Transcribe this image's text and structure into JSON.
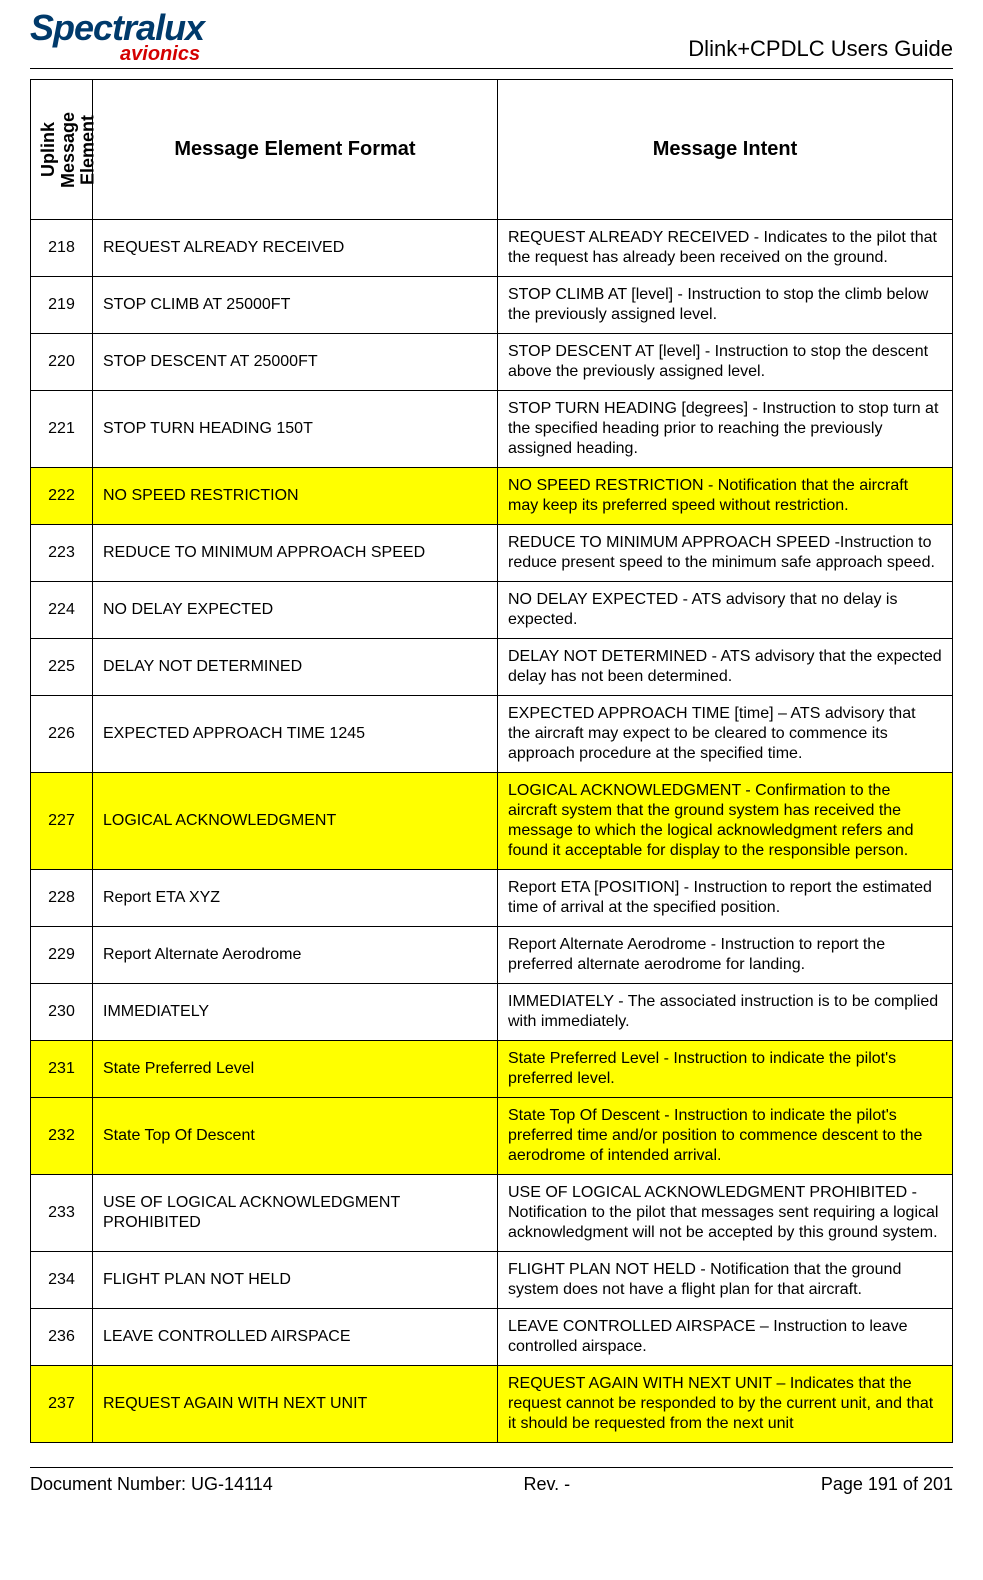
{
  "header": {
    "logo_main": "Spectralux",
    "logo_sub": "avionics",
    "doc_title": "Dlink+CPDLC Users Guide"
  },
  "table": {
    "headers": {
      "element": "Uplink Message Element",
      "format": "Message Element Format",
      "intent": "Message Intent"
    },
    "highlight_color": "#ffff00",
    "rows": [
      {
        "id": "218",
        "format": "REQUEST ALREADY RECEIVED",
        "intent": "REQUEST ALREADY RECEIVED - Indicates to the pilot that the request has already been received on the ground.",
        "highlight": false
      },
      {
        "id": "219",
        "format": "STOP CLIMB AT 25000FT",
        "intent": "STOP CLIMB AT [level] - Instruction to stop the climb below the previously assigned level.",
        "highlight": false
      },
      {
        "id": "220",
        "format": "STOP DESCENT AT 25000FT",
        "intent": "STOP DESCENT AT [level] - Instruction to stop the descent above the previously assigned level.",
        "highlight": false
      },
      {
        "id": "221",
        "format": "STOP TURN HEADING 150T",
        "intent": "STOP TURN HEADING [degrees] - Instruction to stop turn at the specified heading prior to reaching the previously assigned heading.",
        "highlight": false
      },
      {
        "id": "222",
        "format": "NO SPEED RESTRICTION",
        "intent": "NO SPEED RESTRICTION - Notification that the aircraft may keep its preferred speed without restriction.",
        "highlight": true
      },
      {
        "id": "223",
        "format": "REDUCE TO MINIMUM APPROACH SPEED",
        "intent": "REDUCE TO MINIMUM APPROACH SPEED -Instruction to reduce present speed to the minimum safe approach speed.",
        "highlight": false
      },
      {
        "id": "224",
        "format": "NO DELAY EXPECTED",
        "intent": "NO DELAY EXPECTED - ATS advisory that no delay is expected.",
        "highlight": false
      },
      {
        "id": "225",
        "format": "DELAY NOT DETERMINED",
        "intent": "DELAY NOT DETERMINED - ATS advisory that the expected delay has not been determined.",
        "highlight": false
      },
      {
        "id": "226",
        "format": "EXPECTED APPROACH TIME 1245",
        "intent": "EXPECTED APPROACH TIME [time] – ATS advisory that the aircraft may expect to be cleared to commence its approach procedure at the specified time.",
        "highlight": false
      },
      {
        "id": "227",
        "format": "LOGICAL ACKNOWLEDGMENT",
        "intent": "LOGICAL ACKNOWLEDGMENT - Confirmation to the aircraft system that the ground system has received the message to which the logical acknowledgment refers and found it acceptable for display to the responsible person.",
        "highlight": true
      },
      {
        "id": "228",
        "format": "Report ETA XYZ",
        "intent": "Report ETA [POSITION] - Instruction to report the estimated time of arrival at the specified position.",
        "highlight": false
      },
      {
        "id": "229",
        "format": "Report Alternate Aerodrome",
        "intent": "Report Alternate Aerodrome - Instruction to report the preferred alternate aerodrome for landing.",
        "highlight": false
      },
      {
        "id": "230",
        "format": "IMMEDIATELY",
        "intent": "IMMEDIATELY - The associated instruction is to be complied with immediately.",
        "highlight": false
      },
      {
        "id": "231",
        "format": "State Preferred Level",
        "intent": "State Preferred Level - Instruction to indicate the pilot's preferred level.",
        "highlight": true
      },
      {
        "id": "232",
        "format": "State Top Of Descent",
        "intent": "State Top Of Descent - Instruction to indicate the pilot's preferred time and/or position to commence descent to the aerodrome of intended arrival.",
        "highlight": true
      },
      {
        "id": "233",
        "format": "USE OF LOGICAL ACKNOWLEDGMENT PROHIBITED",
        "intent": "USE OF LOGICAL ACKNOWLEDGMENT PROHIBITED - Notification to the pilot that messages sent requiring a logical acknowledgment will not be accepted by this ground system.",
        "highlight": false
      },
      {
        "id": "234",
        "format": "FLIGHT PLAN NOT HELD",
        "intent": "FLIGHT PLAN NOT HELD - Notification that the ground system does not have a flight plan for that aircraft.",
        "highlight": false
      },
      {
        "id": "236",
        "format": "LEAVE CONTROLLED AIRSPACE",
        "intent": "LEAVE CONTROLLED AIRSPACE – Instruction to leave controlled airspace.",
        "highlight": false
      },
      {
        "id": "237",
        "format": "REQUEST AGAIN WITH NEXT UNIT",
        "intent": "REQUEST AGAIN WITH NEXT UNIT – Indicates that the request cannot be responded to by the current unit, and that it should be requested from the next unit",
        "highlight": true
      }
    ]
  },
  "footer": {
    "doc_number": "Document Number:  UG-14114",
    "rev": "Rev. -",
    "page": "Page 191 of 201"
  }
}
